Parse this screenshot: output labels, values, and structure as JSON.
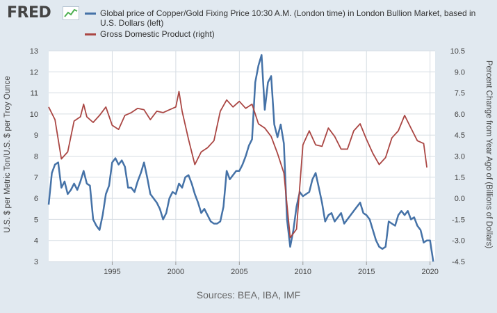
{
  "header": {
    "logo_text": "FRED"
  },
  "source_text": "Sources: BEA, IBA, IMF",
  "colors": {
    "background": "#e1e9f0",
    "plot_background": "#ffffff",
    "grid": "#d6dde3",
    "copper_gold": "#4572a7",
    "gdp": "#aa4643"
  },
  "chart_data": {
    "type": "line",
    "x_tick_labels": [
      "1995",
      "2000",
      "2005",
      "2010",
      "2015",
      "2020"
    ],
    "xlim": [
      1990.0,
      2020.4
    ],
    "left_axis": {
      "label": "U.S. $ per Metric Ton/U.S. $ per Troy Ounce",
      "ylim": [
        3,
        13
      ],
      "ticks": [
        "3",
        "4",
        "5",
        "6",
        "7",
        "8",
        "9",
        "10",
        "11",
        "12",
        "13"
      ]
    },
    "right_axis": {
      "label": "Percent Change from Year Ago of (Billions of Dollars)",
      "ylim": [
        -4.5,
        10.5
      ],
      "ticks": [
        "-4.5",
        "-3.0",
        "-1.5",
        "0.0",
        "1.5",
        "3.0",
        "4.5",
        "6.0",
        "7.5",
        "9.0",
        "10.5"
      ]
    },
    "grid": true,
    "legend_position": "top",
    "series": [
      {
        "name": "Global price of Copper/Gold Fixing Price 10:30 A.M. (London time) in London Bullion Market, based in U.S. Dollars (left)",
        "axis": "left",
        "color": "#4572a7",
        "points": [
          [
            1990.0,
            5.7
          ],
          [
            1990.25,
            7.2
          ],
          [
            1990.5,
            7.6
          ],
          [
            1990.75,
            7.7
          ],
          [
            1991.0,
            6.5
          ],
          [
            1991.25,
            6.8
          ],
          [
            1991.5,
            6.2
          ],
          [
            1991.75,
            6.4
          ],
          [
            1992.0,
            6.7
          ],
          [
            1992.25,
            6.4
          ],
          [
            1992.5,
            6.8
          ],
          [
            1992.75,
            7.3
          ],
          [
            1993.0,
            6.7
          ],
          [
            1993.25,
            6.6
          ],
          [
            1993.5,
            5.0
          ],
          [
            1993.75,
            4.7
          ],
          [
            1994.0,
            4.5
          ],
          [
            1994.25,
            5.2
          ],
          [
            1994.5,
            6.2
          ],
          [
            1994.75,
            6.6
          ],
          [
            1995.0,
            7.7
          ],
          [
            1995.25,
            7.9
          ],
          [
            1995.5,
            7.6
          ],
          [
            1995.75,
            7.8
          ],
          [
            1996.0,
            7.5
          ],
          [
            1996.25,
            6.5
          ],
          [
            1996.5,
            6.5
          ],
          [
            1996.75,
            6.3
          ],
          [
            1997.0,
            6.8
          ],
          [
            1997.25,
            7.2
          ],
          [
            1997.5,
            7.7
          ],
          [
            1997.75,
            7.0
          ],
          [
            1998.0,
            6.2
          ],
          [
            1998.25,
            6.0
          ],
          [
            1998.5,
            5.8
          ],
          [
            1998.75,
            5.5
          ],
          [
            1999.0,
            5.0
          ],
          [
            1999.25,
            5.3
          ],
          [
            1999.5,
            6.0
          ],
          [
            1999.75,
            6.3
          ],
          [
            2000.0,
            6.2
          ],
          [
            2000.25,
            6.7
          ],
          [
            2000.5,
            6.5
          ],
          [
            2000.75,
            7.0
          ],
          [
            2001.0,
            7.1
          ],
          [
            2001.25,
            6.7
          ],
          [
            2001.5,
            6.2
          ],
          [
            2001.75,
            5.8
          ],
          [
            2002.0,
            5.3
          ],
          [
            2002.25,
            5.5
          ],
          [
            2002.5,
            5.2
          ],
          [
            2002.75,
            4.9
          ],
          [
            2003.0,
            4.8
          ],
          [
            2003.25,
            4.8
          ],
          [
            2003.5,
            4.9
          ],
          [
            2003.75,
            5.6
          ],
          [
            2004.0,
            7.3
          ],
          [
            2004.25,
            6.9
          ],
          [
            2004.5,
            7.1
          ],
          [
            2004.75,
            7.3
          ],
          [
            2005.0,
            7.3
          ],
          [
            2005.25,
            7.6
          ],
          [
            2005.5,
            8.0
          ],
          [
            2005.75,
            8.5
          ],
          [
            2006.0,
            8.8
          ],
          [
            2006.25,
            11.5
          ],
          [
            2006.5,
            12.3
          ],
          [
            2006.75,
            12.8
          ],
          [
            2007.0,
            10.2
          ],
          [
            2007.25,
            11.5
          ],
          [
            2007.5,
            11.8
          ],
          [
            2007.75,
            9.5
          ],
          [
            2008.0,
            8.9
          ],
          [
            2008.25,
            9.5
          ],
          [
            2008.5,
            8.6
          ],
          [
            2008.75,
            5.0
          ],
          [
            2009.0,
            3.7
          ],
          [
            2009.25,
            4.5
          ],
          [
            2009.5,
            5.6
          ],
          [
            2009.75,
            6.3
          ],
          [
            2010.0,
            6.1
          ],
          [
            2010.25,
            6.2
          ],
          [
            2010.5,
            6.3
          ],
          [
            2010.75,
            6.9
          ],
          [
            2011.0,
            7.2
          ],
          [
            2011.25,
            6.5
          ],
          [
            2011.5,
            5.8
          ],
          [
            2011.75,
            4.9
          ],
          [
            2012.0,
            5.2
          ],
          [
            2012.25,
            5.3
          ],
          [
            2012.5,
            4.9
          ],
          [
            2012.75,
            5.1
          ],
          [
            2013.0,
            5.3
          ],
          [
            2013.25,
            4.8
          ],
          [
            2013.5,
            5.0
          ],
          [
            2013.75,
            5.2
          ],
          [
            2014.0,
            5.4
          ],
          [
            2014.25,
            5.6
          ],
          [
            2014.5,
            5.8
          ],
          [
            2014.75,
            5.3
          ],
          [
            2015.0,
            5.2
          ],
          [
            2015.25,
            5.0
          ],
          [
            2015.5,
            4.5
          ],
          [
            2015.75,
            4.0
          ],
          [
            2016.0,
            3.7
          ],
          [
            2016.25,
            3.6
          ],
          [
            2016.5,
            3.7
          ],
          [
            2016.75,
            4.9
          ],
          [
            2017.0,
            4.8
          ],
          [
            2017.25,
            4.7
          ],
          [
            2017.5,
            5.2
          ],
          [
            2017.75,
            5.4
          ],
          [
            2018.0,
            5.2
          ],
          [
            2018.25,
            5.4
          ],
          [
            2018.5,
            5.0
          ],
          [
            2018.75,
            5.1
          ],
          [
            2019.0,
            4.7
          ],
          [
            2019.25,
            4.5
          ],
          [
            2019.5,
            3.9
          ],
          [
            2019.75,
            4.0
          ],
          [
            2020.0,
            4.0
          ],
          [
            2020.25,
            3.0
          ]
        ]
      },
      {
        "name": "Gross Domestic Product (right)",
        "axis": "right",
        "color": "#aa4643",
        "points": [
          [
            1990.0,
            6.5
          ],
          [
            1990.5,
            5.6
          ],
          [
            1991.0,
            2.8
          ],
          [
            1991.5,
            3.3
          ],
          [
            1992.0,
            5.5
          ],
          [
            1992.5,
            5.8
          ],
          [
            1992.75,
            6.7
          ],
          [
            1993.0,
            5.8
          ],
          [
            1993.5,
            5.4
          ],
          [
            1994.0,
            5.9
          ],
          [
            1994.5,
            6.5
          ],
          [
            1995.0,
            5.2
          ],
          [
            1995.5,
            4.9
          ],
          [
            1996.0,
            5.9
          ],
          [
            1996.5,
            6.1
          ],
          [
            1997.0,
            6.4
          ],
          [
            1997.5,
            6.3
          ],
          [
            1998.0,
            5.6
          ],
          [
            1998.5,
            6.2
          ],
          [
            1999.0,
            6.1
          ],
          [
            1999.5,
            6.3
          ],
          [
            2000.0,
            6.5
          ],
          [
            2000.25,
            7.6
          ],
          [
            2000.5,
            6.2
          ],
          [
            2001.0,
            4.2
          ],
          [
            2001.5,
            2.4
          ],
          [
            2002.0,
            3.3
          ],
          [
            2002.5,
            3.6
          ],
          [
            2003.0,
            4.1
          ],
          [
            2003.5,
            6.2
          ],
          [
            2004.0,
            7.0
          ],
          [
            2004.5,
            6.5
          ],
          [
            2005.0,
            6.9
          ],
          [
            2005.5,
            6.4
          ],
          [
            2006.0,
            6.7
          ],
          [
            2006.5,
            5.3
          ],
          [
            2007.0,
            5.0
          ],
          [
            2007.5,
            4.4
          ],
          [
            2008.0,
            3.2
          ],
          [
            2008.5,
            1.8
          ],
          [
            2009.0,
            -2.8
          ],
          [
            2009.5,
            -2.2
          ],
          [
            2010.0,
            3.8
          ],
          [
            2010.5,
            4.8
          ],
          [
            2011.0,
            3.8
          ],
          [
            2011.5,
            3.7
          ],
          [
            2012.0,
            5.0
          ],
          [
            2012.5,
            4.4
          ],
          [
            2013.0,
            3.5
          ],
          [
            2013.5,
            3.5
          ],
          [
            2014.0,
            4.8
          ],
          [
            2014.5,
            5.3
          ],
          [
            2015.0,
            4.2
          ],
          [
            2015.5,
            3.2
          ],
          [
            2016.0,
            2.4
          ],
          [
            2016.5,
            2.9
          ],
          [
            2017.0,
            4.3
          ],
          [
            2017.5,
            4.8
          ],
          [
            2018.0,
            5.9
          ],
          [
            2018.5,
            5.0
          ],
          [
            2019.0,
            4.1
          ],
          [
            2019.5,
            3.9
          ],
          [
            2019.75,
            2.2
          ]
        ]
      }
    ]
  }
}
